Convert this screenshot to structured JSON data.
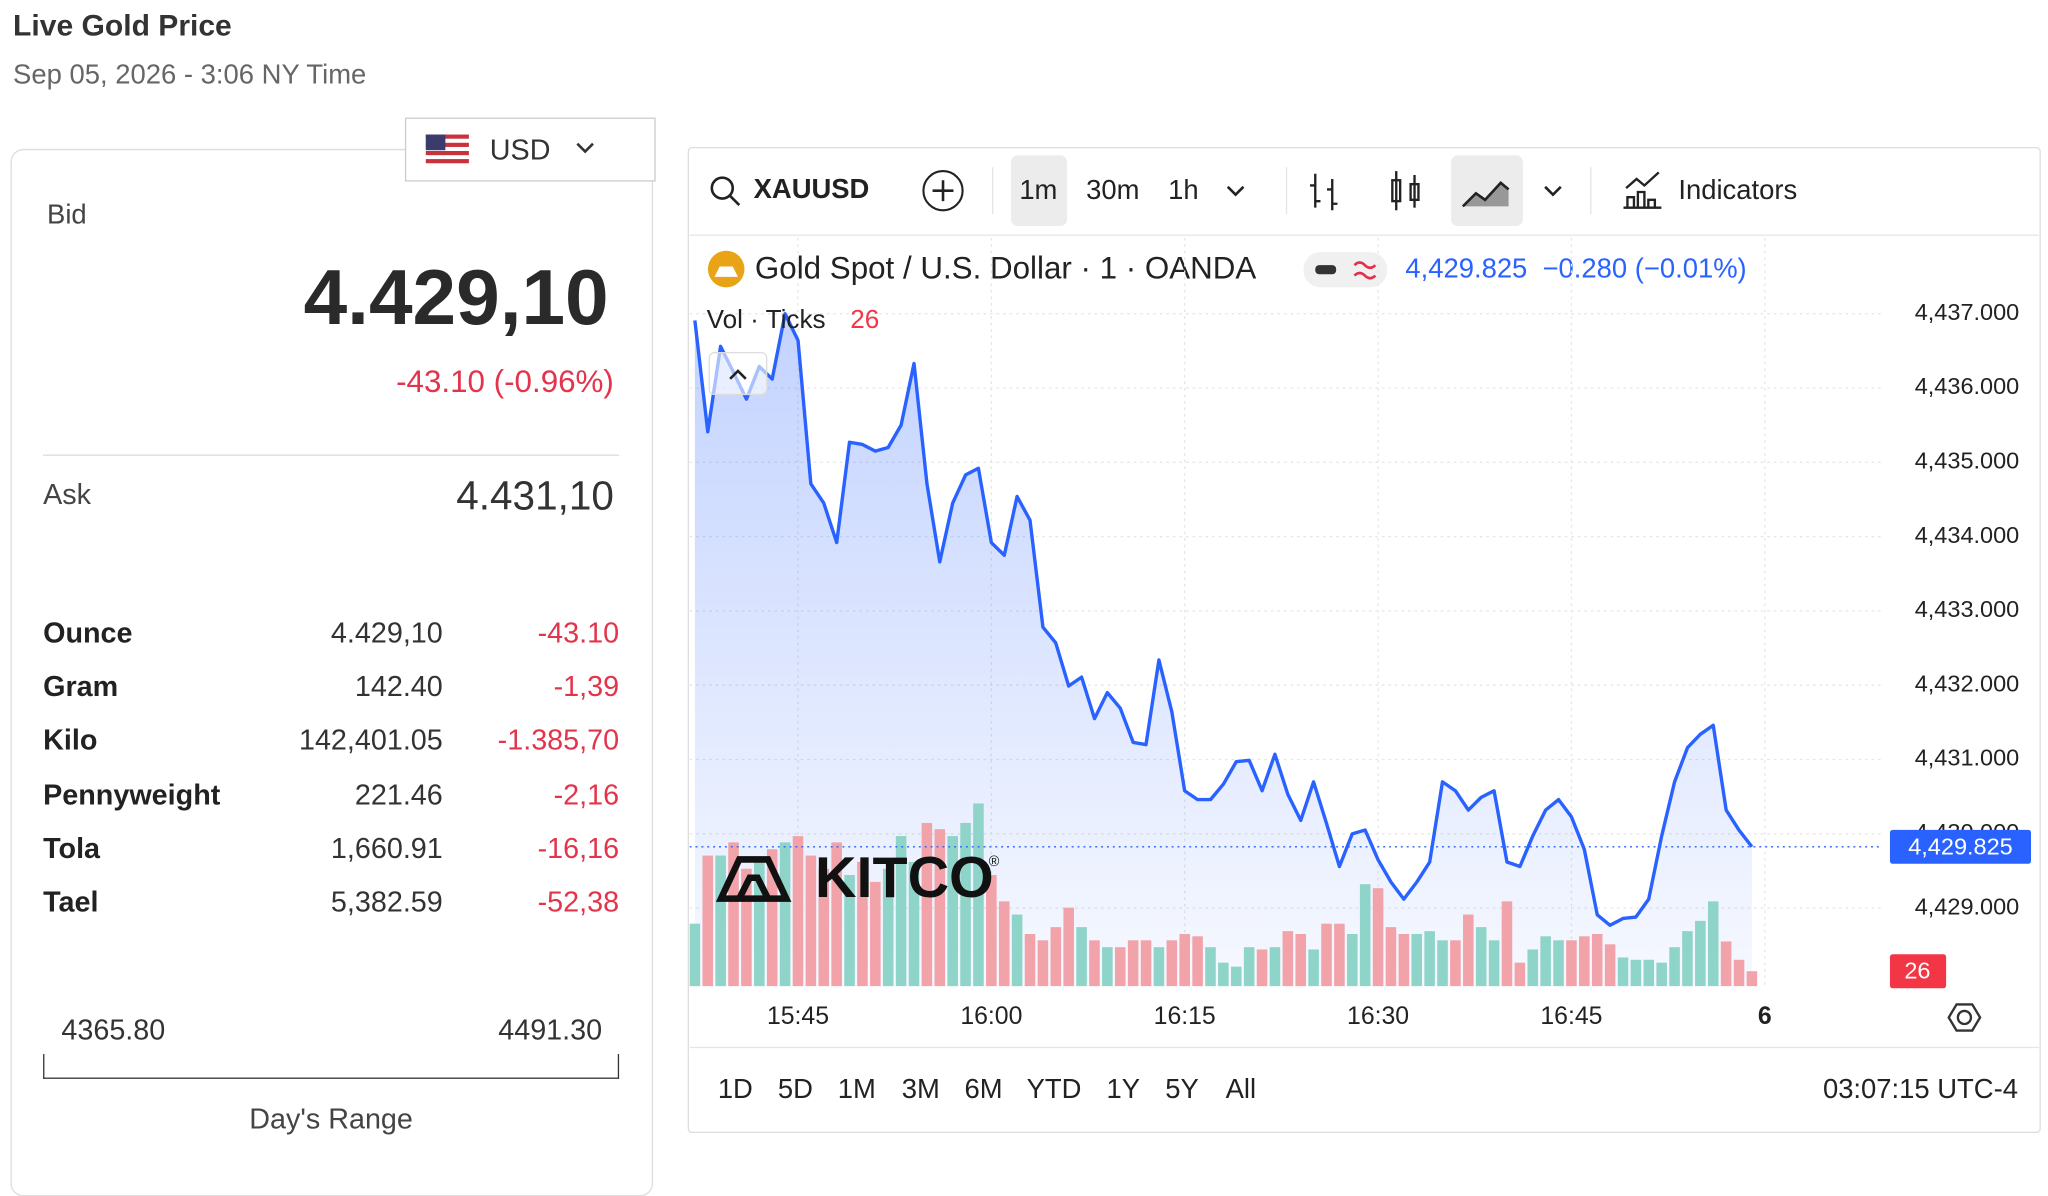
{
  "header": {
    "title": "Live Gold Price",
    "subtitle": "Sep 05, 2026 - 3:06 NY Time"
  },
  "price_panel": {
    "currency": "USD",
    "bid_label": "Bid",
    "bid": "4.429,10",
    "change": "-43.10 (-0.96%)",
    "ask_label": "Ask",
    "ask": "4.431,10",
    "rows": [
      [
        "Ounce",
        "4.429,10",
        "-43.10"
      ],
      [
        "Gram",
        "142.40",
        "-1,39"
      ],
      [
        "Kilo",
        "142,401.05",
        "-1.385,70"
      ],
      [
        "Pennyweight",
        "221.46",
        "-2,16"
      ],
      [
        "Tola",
        "1,660.91",
        "-16,16"
      ],
      [
        "Tael",
        "5,382.59",
        "-52,38"
      ]
    ],
    "range_low": "4365.80",
    "range_high": "4491.30",
    "range_label": "Day's Range"
  },
  "chart_widget": {
    "symbol": "XAUUSD",
    "intervals": [
      "1m",
      "30m",
      "1h"
    ],
    "indicators": "Indicators",
    "legend_price": "4,429.825",
    "legend_change": "−0.280 (−0.01%)",
    "logo": "KITCO",
    "logo_mark": "®",
    "ranges": [
      "1D",
      "5D",
      "1M",
      "3M",
      "6M",
      "YTD",
      "1Y",
      "5Y",
      "All"
    ],
    "clock": "03:07:15 UTC-4"
  },
  "chart_data": {
    "type": "line",
    "x": [
      "15:37",
      "15:38",
      "15:39",
      "15:40",
      "15:41",
      "15:42",
      "15:43",
      "15:44",
      "15:45",
      "15:46",
      "15:47",
      "15:48",
      "15:49",
      "15:50",
      "15:51",
      "15:52",
      "15:53",
      "15:54",
      "15:55",
      "15:56",
      "15:57",
      "15:58",
      "15:59",
      "16:00",
      "16:01",
      "16:02",
      "16:03",
      "16:04",
      "16:05",
      "16:06",
      "16:07",
      "16:08",
      "16:09",
      "16:10",
      "16:11",
      "16:12",
      "16:13",
      "16:14",
      "16:15",
      "16:16",
      "16:17",
      "16:18",
      "16:19",
      "16:20",
      "16:21",
      "16:22",
      "16:23",
      "16:24",
      "16:25",
      "16:26",
      "16:27",
      "16:28",
      "16:29",
      "16:30",
      "16:31",
      "16:32",
      "16:33",
      "16:34",
      "16:35",
      "16:36",
      "16:37",
      "16:38",
      "16:39",
      "16:40",
      "16:41",
      "16:42",
      "16:43",
      "16:44",
      "16:45",
      "16:46",
      "16:47",
      "16:48",
      "16:49",
      "16:50",
      "16:51",
      "16:52",
      "16:53",
      "16:54",
      "16:55",
      "16:56",
      "16:57",
      "16:58",
      "16:59"
    ],
    "series": [
      {
        "name": "Gold Spot / U.S. Dollar · 1 · OANDA",
        "type": "line",
        "color": "#2962ff",
        "values": [
          4436.91,
          4435.41,
          4436.56,
          4436.21,
          4435.85,
          4436.29,
          4436.12,
          4437.0,
          4436.64,
          4434.71,
          4434.45,
          4433.92,
          4435.27,
          4435.24,
          4435.15,
          4435.2,
          4435.5,
          4436.33,
          4434.71,
          4433.66,
          4434.45,
          4434.83,
          4434.92,
          4433.92,
          4433.75,
          4434.54,
          4434.22,
          4432.78,
          4432.57,
          4431.99,
          4432.11,
          4431.55,
          4431.9,
          4431.69,
          4431.23,
          4431.2,
          4432.34,
          4431.64,
          4430.58,
          4430.46,
          4430.46,
          4430.67,
          4430.97,
          4430.99,
          4430.58,
          4431.07,
          4430.53,
          4430.18,
          4430.7,
          4430.14,
          4429.56,
          4430.0,
          4430.05,
          4429.65,
          4429.35,
          4429.12,
          4429.35,
          4429.62,
          4430.7,
          4430.58,
          4430.32,
          4430.49,
          4430.58,
          4429.62,
          4429.56,
          4429.97,
          4430.32,
          4430.46,
          4430.23,
          4429.79,
          4428.91,
          4428.77,
          4428.86,
          4428.88,
          4429.12,
          4429.97,
          4430.7,
          4431.16,
          4431.34,
          4431.46,
          4430.32,
          4430.05,
          4429.825
        ]
      },
      {
        "name": "Vol · Ticks",
        "type": "bar",
        "axis": "y2",
        "up_color": "#8fd4c9",
        "down_color": "#f2a3a9",
        "values": [
          109,
          228,
          228,
          251,
          205,
          217,
          239,
          251,
          262,
          228,
          205,
          251,
          194,
          217,
          182,
          205,
          262,
          217,
          285,
          274,
          262,
          285,
          319,
          194,
          148,
          125,
          91,
          80,
          103,
          137,
          103,
          80,
          68,
          68,
          80,
          80,
          68,
          80,
          91,
          87,
          68,
          41,
          34,
          68,
          64,
          68,
          96,
          91,
          64,
          109,
          109,
          91,
          178,
          171,
          103,
          91,
          91,
          96,
          80,
          80,
          125,
          103,
          80,
          148,
          41,
          64,
          87,
          80,
          80,
          87,
          91,
          73,
          50,
          46,
          46,
          41,
          68,
          96,
          114,
          148,
          78,
          46,
          26
        ]
      }
    ],
    "xlim": [
      "15:37",
      "17:09"
    ],
    "xticks": [
      "15:45",
      "16:00",
      "16:15",
      "16:30",
      "16:45",
      {
        "value": "17:00",
        "label": "6"
      }
    ],
    "ylim": [
      4427.95,
      4437.97
    ],
    "yticks": [
      {
        "value": 4429,
        "label": "4,429.000"
      },
      {
        "value": 4430,
        "label": "4,430.000"
      },
      {
        "value": 4431,
        "label": "4,431.000"
      },
      {
        "value": 4432,
        "label": "4,432.000"
      },
      {
        "value": 4433,
        "label": "4,433.000"
      },
      {
        "value": 4434,
        "label": "4,434.000"
      },
      {
        "value": 4435,
        "label": "4,435.000"
      },
      {
        "value": 4436,
        "label": "4,436.000"
      },
      {
        "value": 4437,
        "label": "4,437.000"
      }
    ],
    "y2lim": [
      0,
      1300
    ],
    "grid": true
  }
}
